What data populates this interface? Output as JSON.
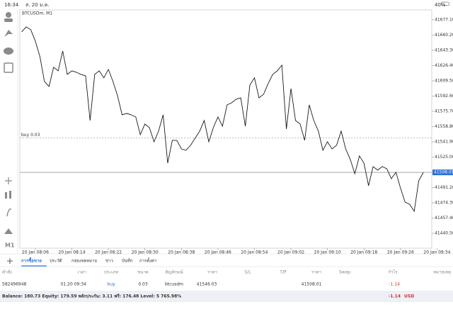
{
  "status_bar": {
    "time": "16:34",
    "date": "ส. 20 ม.ค.",
    "battery": "40%"
  },
  "toolbar": {
    "timeframe": "M1"
  },
  "chart_data": {
    "type": "line",
    "title": "BTCUSDm, M1",
    "color": "#1a1a1a",
    "values": [
      41663.7,
      41669.2,
      41666.1,
      41653.5,
      41636.2,
      41608.7,
      41603.2,
      41624.4,
      41620.5,
      41642.5,
      41616.6,
      41620.5,
      41618.9,
      41616.6,
      41615.0,
      41565.5,
      41616.6,
      41620.5,
      41612.7,
      41622.1,
      41608.7,
      41593.0,
      41571.8,
      41573.4,
      41571.8,
      41569.4,
      41549.8,
      41561.6,
      41557.6,
      41541.9,
      41553.7,
      41571.8,
      41518.3,
      41543.5,
      41543.5,
      41534.0,
      41532.5,
      41538.0,
      41545.8,
      41553.7,
      41565.5,
      41541.9,
      41557.6,
      41569.4,
      41559.2,
      41582.8,
      41585.1,
      41589.1,
      41590.6,
      41559.2,
      41604.8,
      41612.7,
      41590.6,
      41594.6,
      41606.4,
      41616.6,
      41620.5,
      41626.8,
      41556.1,
      41600.9,
      41565.5,
      41561.6,
      41543.5,
      41582.8,
      41565.5,
      41553.7,
      41532.5,
      41541.9,
      41534.0,
      41538.0,
      41553.7,
      41534.0,
      41522.3,
      41506.5,
      41526.2,
      41518.3,
      41493.2,
      41514.4,
      41510.5,
      41514.4,
      41512.0,
      41501.0,
      41508.1,
      41490.8,
      41475.1,
      41472.7,
      41464.9,
      41498.7,
      41508.01
    ],
    "xlim": [
      -0.4,
      91.4
    ],
    "xticks": [
      {
        "value": 3,
        "label": "20 Jan 08:06"
      },
      {
        "value": 11,
        "label": "20 Jan 08:14"
      },
      {
        "value": 19,
        "label": "20 Jan 08:22"
      },
      {
        "value": 27,
        "label": "20 Jan 08:30"
      },
      {
        "value": 35,
        "label": "20 Jan 08:38"
      },
      {
        "value": 43,
        "label": "20 Jan 08:46"
      },
      {
        "value": 51,
        "label": "20 Jan 08:54"
      },
      {
        "value": 59,
        "label": "20 Jan 09:02"
      },
      {
        "value": 67,
        "label": "20 Jan 09:10"
      },
      {
        "value": 75,
        "label": "20 Jan 09:18"
      },
      {
        "value": 83,
        "label": "20 Jan 09:26"
      },
      {
        "value": 91,
        "label": "20 Jan 09:34"
      }
    ],
    "ylim": [
      41424,
      41688
    ],
    "yticks": [
      {
        "value": 41677.1,
        "label": "41677.10"
      },
      {
        "value": 41660.2,
        "label": "41660.20"
      },
      {
        "value": 41643.3,
        "label": "41643.30"
      },
      {
        "value": 41626.4,
        "label": "41626.40"
      },
      {
        "value": 41609.5,
        "label": "41609.50"
      },
      {
        "value": 41592.6,
        "label": "41592.60"
      },
      {
        "value": 41575.7,
        "label": "41575.70"
      },
      {
        "value": 41558.8,
        "label": "41558.80"
      },
      {
        "value": 41541.9,
        "label": "41541.90"
      },
      {
        "value": 41525,
        "label": "41525.00"
      },
      {
        "value": 41491.2,
        "label": "41491.20"
      },
      {
        "value": 41474.3,
        "label": "41474.30"
      },
      {
        "value": 41457.4,
        "label": "41457.40"
      },
      {
        "value": 41440.5,
        "label": "41440.50"
      }
    ],
    "order_line": {
      "label": "buy 0.03",
      "value": 41546.03
    },
    "current_price": 41508.01
  },
  "tabs": [
    "การซื้อขาย",
    "ประวัติ",
    "กล่องจดหมาย",
    "ข่าว",
    "บันทึก",
    "การตั้งค่า"
  ],
  "table": {
    "header": [
      "คำสั่ง",
      "เวลา",
      "ประเภท",
      "ขนาด",
      "สัญลักษณ์",
      "ราคา",
      "S/L",
      "T/P",
      "ราคา",
      "Swap",
      "กำไร",
      "หมายเหตุ"
    ],
    "row": {
      "order": "582496948",
      "time": "01.20 09:34",
      "type": "buy",
      "volume": "0.03",
      "symbol": "btcusdm",
      "open_price": "41546.03",
      "price": "41508.01",
      "profit": "-1.14"
    }
  },
  "footer": {
    "summary": "Balance: 180.73 Equity: 179.59 พลักประกัน: 3.11 ฟรี: 176.48 Level: 5 765.98%",
    "profit": "-1.14",
    "currency": "USD"
  }
}
